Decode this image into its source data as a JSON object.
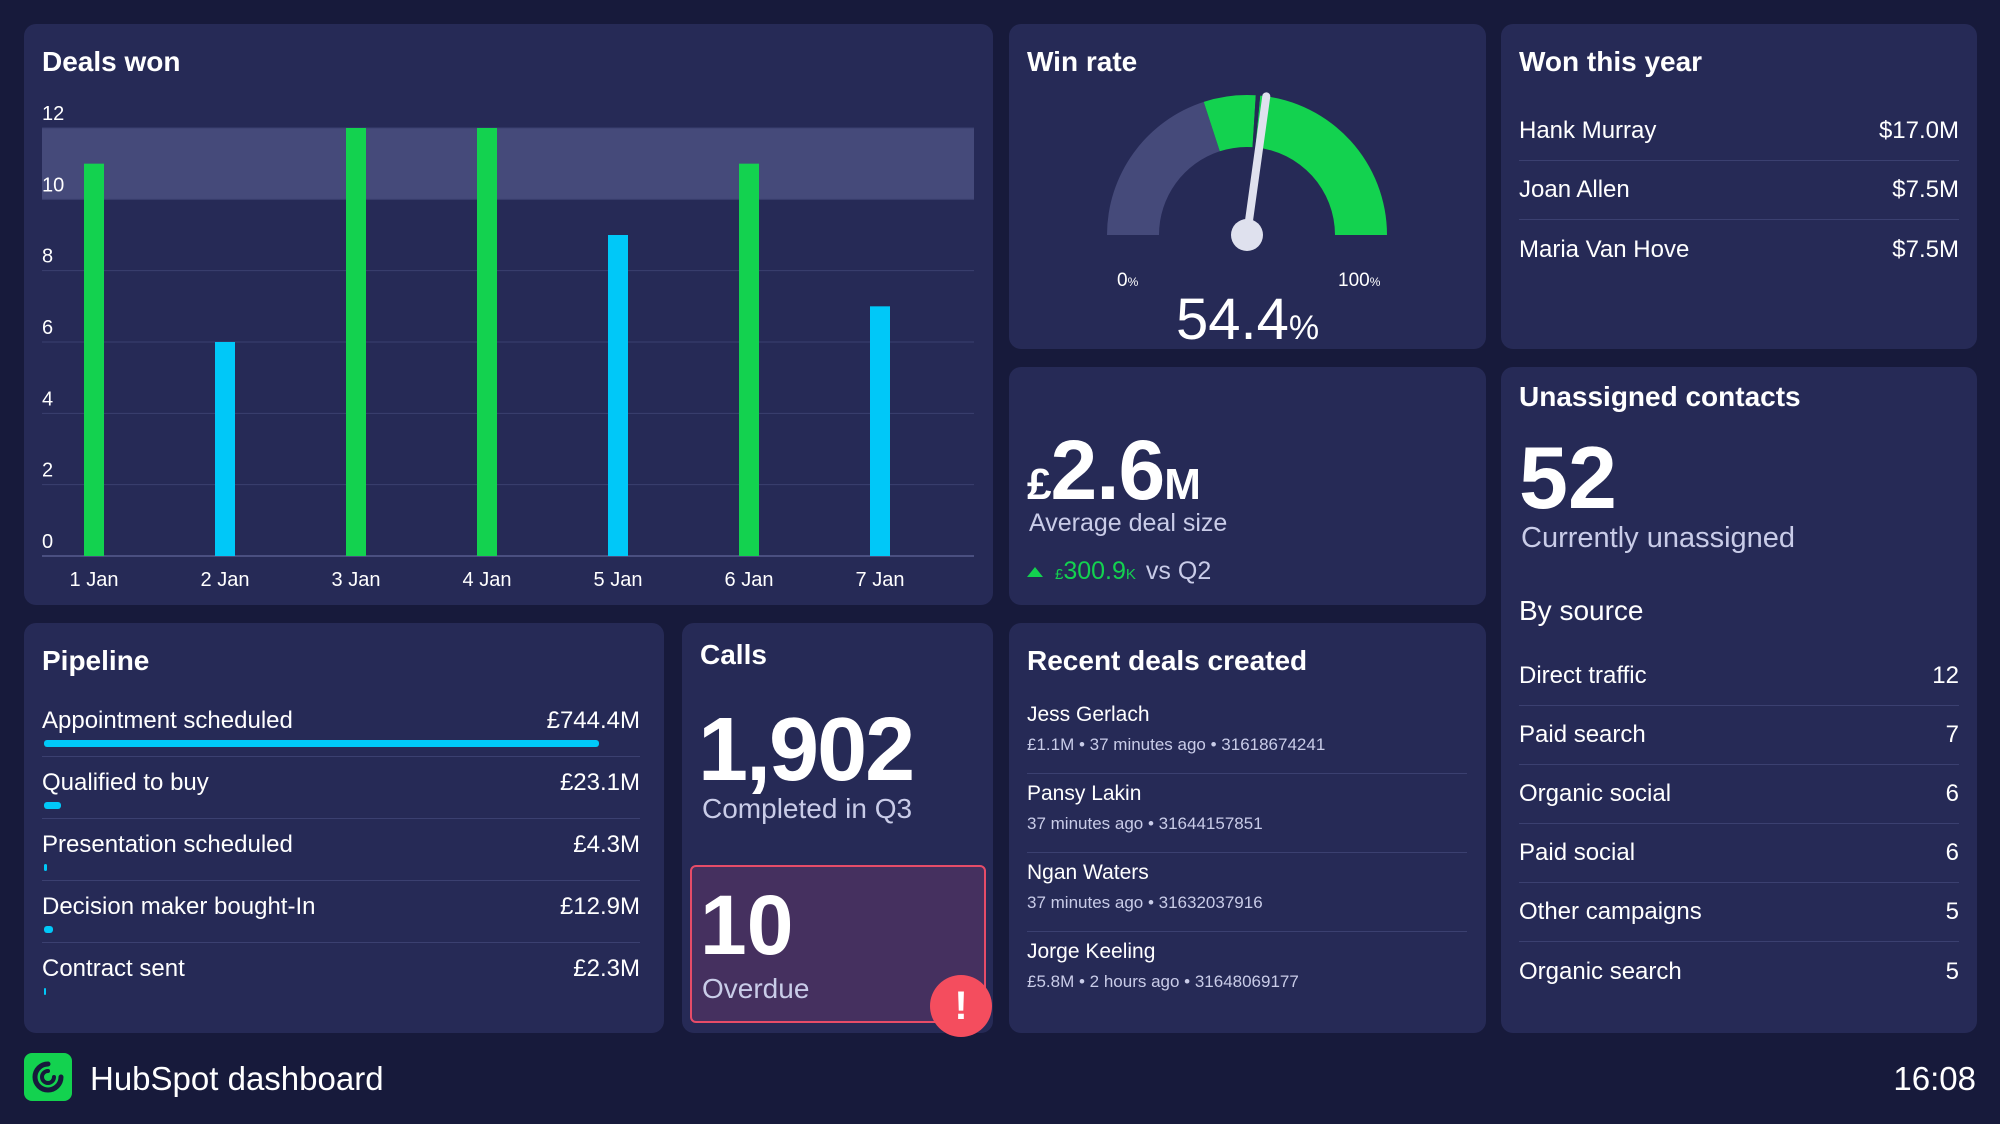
{
  "deals_won": {
    "title": "Deals won",
    "chart_data": {
      "type": "bar",
      "title": "Deals won",
      "categories": [
        "1 Jan",
        "2 Jan",
        "3 Jan",
        "4 Jan",
        "5 Jan",
        "6 Jan",
        "7 Jan"
      ],
      "values": [
        11,
        6,
        12,
        12,
        9,
        11,
        7
      ],
      "bar_colors": [
        "#13d24f",
        "#00c8f8",
        "#13d24f",
        "#13d24f",
        "#00c8f8",
        "#13d24f",
        "#00c8f8"
      ],
      "y_ticks": [
        0,
        2,
        4,
        6,
        8,
        10,
        12
      ],
      "ylim": [
        0,
        12
      ],
      "target_band": [
        10,
        12
      ],
      "grid": true,
      "xlabel": "",
      "ylabel": ""
    }
  },
  "win_rate": {
    "title": "Win rate",
    "value": "54.4",
    "unit": "%",
    "fraction": 0.544,
    "min_label": "0",
    "max_label": "100",
    "pct_symbol": "%",
    "target_band": [
      0.4,
      0.52
    ]
  },
  "won_this_year": {
    "title": "Won this year",
    "rows": [
      {
        "name": "Hank Murray",
        "value": "$17.0M"
      },
      {
        "name": "Joan Allen",
        "value": "$7.5M"
      },
      {
        "name": "Maria Van Hove",
        "value": "$7.5M"
      }
    ]
  },
  "avg_deal": {
    "currency": "£",
    "value": "2.6",
    "unit": "M",
    "label": "Average deal size",
    "change_currency": "£",
    "change_value": "300.9",
    "change_unit": "K",
    "change_label": "vs Q2"
  },
  "unassigned": {
    "title": "Unassigned contacts",
    "count": "52",
    "subtitle": "Currently unassigned",
    "by_source_label": "By source",
    "sources": [
      {
        "name": "Direct traffic",
        "value": "12"
      },
      {
        "name": "Paid search",
        "value": "7"
      },
      {
        "name": "Organic social",
        "value": "6"
      },
      {
        "name": "Paid social",
        "value": "6"
      },
      {
        "name": "Other campaigns",
        "value": "5"
      },
      {
        "name": "Organic search",
        "value": "5"
      }
    ]
  },
  "pipeline": {
    "title": "Pipeline",
    "rows": [
      {
        "label": "Appointment scheduled",
        "value": "£744.4M",
        "fraction": 1.0
      },
      {
        "label": "Qualified to buy",
        "value": "£23.1M",
        "fraction": 0.031
      },
      {
        "label": "Presentation scheduled",
        "value": "£4.3M",
        "fraction": 0.006
      },
      {
        "label": "Decision maker bought-In",
        "value": "£12.9M",
        "fraction": 0.017
      },
      {
        "label": "Contract sent",
        "value": "£2.3M",
        "fraction": 0.003
      }
    ]
  },
  "calls": {
    "title": "Calls",
    "count": "1,902",
    "subtitle": "Completed in Q3",
    "overdue_count": "10",
    "overdue_label": "Overdue",
    "alert_symbol": "!"
  },
  "recent_deals": {
    "title": "Recent deals created",
    "deals": [
      {
        "name": "Jess Gerlach",
        "meta": "£1.1M • 37 minutes ago • 31618674241"
      },
      {
        "name": "Pansy Lakin",
        "meta": "37 minutes ago • 31644157851"
      },
      {
        "name": "Ngan Waters",
        "meta": "37 minutes ago • 31632037916"
      },
      {
        "name": "Jorge Keeling",
        "meta": "£5.8M • 2 hours ago • 31648069177"
      }
    ]
  },
  "footer": {
    "title": "HubSpot dashboard",
    "time": "16:08",
    "logo_icon": "hubspot-swirl-icon"
  },
  "colors": {
    "background": "#171a3b",
    "card": "#262a56",
    "green": "#13d24f",
    "cyan": "#00c8f8",
    "alert": "#f44d5e"
  }
}
